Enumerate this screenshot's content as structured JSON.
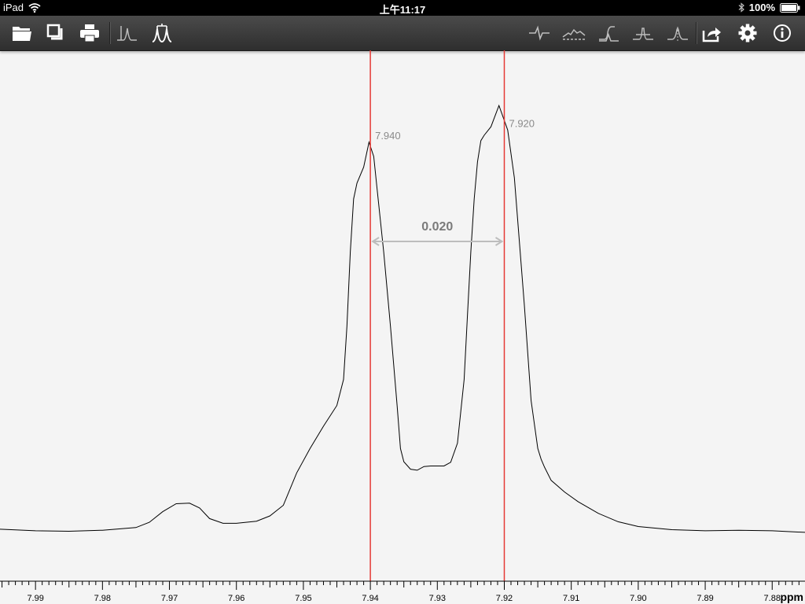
{
  "status_bar": {
    "device": "iPad",
    "time": "上午11:17",
    "battery": "100%",
    "icons": [
      "wifi-icon",
      "bluetooth-icon",
      "battery-icon"
    ]
  },
  "toolbar": {
    "left_buttons": [
      "open-folder-icon",
      "duplicate-icon",
      "print-icon",
      "peak-pick-icon",
      "multiplet-icon"
    ],
    "right_buttons": [
      "phase-icon",
      "baseline-icon",
      "integrate-icon",
      "peak-shape-icon",
      "gaussian-icon",
      "share-icon",
      "settings-gear-icon",
      "info-icon"
    ],
    "colors": {
      "background": "#3a3a3a",
      "icon_active": "#ffffff",
      "icon_dim": "#bdbdbd"
    }
  },
  "chart_data": {
    "type": "line",
    "xlabel": "ppm",
    "x_reversed": true,
    "xlim": [
      7.9953,
      7.8751
    ],
    "ylim": [
      0,
      1
    ],
    "tick_labels": [
      "7.99",
      "7.98",
      "7.97",
      "7.96",
      "7.95",
      "7.94",
      "7.93",
      "7.92",
      "7.91",
      "7.90",
      "7.89",
      "7.88"
    ],
    "grid": false,
    "series": [
      {
        "color": "#000000",
        "x": [
          7.9953,
          7.99,
          7.985,
          7.98,
          7.975,
          7.973,
          7.971,
          7.969,
          7.967,
          7.9655,
          7.964,
          7.962,
          7.96,
          7.957,
          7.955,
          7.953,
          7.951,
          7.949,
          7.947,
          7.945,
          7.944,
          7.9435,
          7.943,
          7.9425,
          7.942,
          7.941,
          7.9402,
          7.9395,
          7.939,
          7.938,
          7.937,
          7.936,
          7.9355,
          7.935,
          7.934,
          7.933,
          7.932,
          7.931,
          7.929,
          7.928,
          7.927,
          7.926,
          7.9255,
          7.925,
          7.9245,
          7.924,
          7.9235,
          7.923,
          7.922,
          7.9208,
          7.9195,
          7.9185,
          7.917,
          7.916,
          7.915,
          7.9145,
          7.914,
          7.913,
          7.911,
          7.909,
          7.906,
          7.903,
          7.9,
          7.895,
          7.89,
          7.885,
          7.88,
          7.8751
        ],
        "y": [
          0.098,
          0.095,
          0.094,
          0.096,
          0.101,
          0.111,
          0.131,
          0.146,
          0.147,
          0.138,
          0.118,
          0.109,
          0.109,
          0.113,
          0.123,
          0.143,
          0.204,
          0.25,
          0.292,
          0.331,
          0.38,
          0.48,
          0.62,
          0.72,
          0.75,
          0.78,
          0.827,
          0.8,
          0.74,
          0.62,
          0.48,
          0.33,
          0.25,
          0.225,
          0.211,
          0.209,
          0.216,
          0.217,
          0.217,
          0.224,
          0.26,
          0.38,
          0.5,
          0.62,
          0.72,
          0.79,
          0.83,
          0.84,
          0.856,
          0.896,
          0.85,
          0.76,
          0.52,
          0.34,
          0.25,
          0.23,
          0.215,
          0.19,
          0.168,
          0.15,
          0.128,
          0.112,
          0.103,
          0.097,
          0.095,
          0.096,
          0.095,
          0.092
        ]
      }
    ],
    "markers": [
      {
        "x": 7.94,
        "label": "7.940",
        "color": "#e53935"
      },
      {
        "x": 7.92,
        "label": "7.920",
        "color": "#e53935"
      }
    ],
    "distance": {
      "from": 7.94,
      "to": 7.92,
      "label": "0.020",
      "y": 0.64
    }
  }
}
